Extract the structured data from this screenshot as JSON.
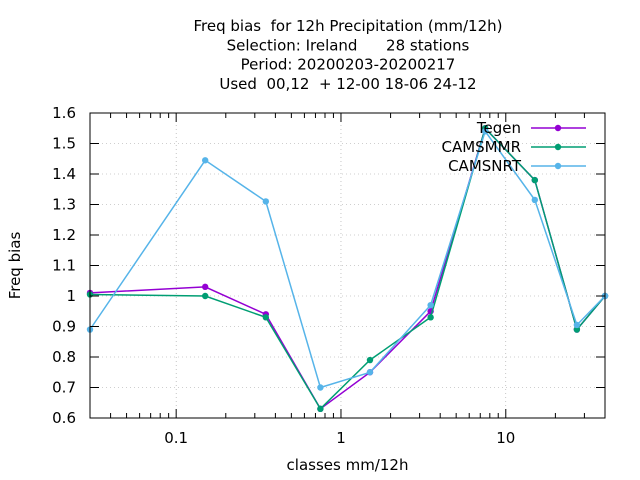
{
  "chart_data": {
    "type": "line",
    "title": [
      "Freq bias  for 12h Precipitation (mm/12h)",
      "Selection: Ireland      28 stations",
      "Period: 20200203-20200217",
      "Used  00,12  + 12-00 18-06 24-12"
    ],
    "xlabel": "classes mm/12h",
    "ylabel": "Freq bias",
    "x_scale": "log",
    "xlim": [
      0.03,
      40
    ],
    "ylim": [
      0.6,
      1.6
    ],
    "x_ticks": [
      0.1,
      1,
      10
    ],
    "x_tick_labels": [
      "0.1",
      "1",
      "10"
    ],
    "y_ticks": [
      0.6,
      0.7,
      0.8,
      0.9,
      1.0,
      1.1,
      1.2,
      1.3,
      1.4,
      1.5,
      1.6
    ],
    "y_tick_labels": [
      "0.6",
      "0.7",
      "0.8",
      "0.9",
      "1",
      "1.1",
      "1.2",
      "1.3",
      "1.4",
      "1.5",
      "1.6"
    ],
    "grid": true,
    "legend_position": "top-right",
    "x": [
      0.03,
      0.15,
      0.35,
      0.75,
      1.5,
      3.5,
      7.5,
      15,
      27,
      40
    ],
    "series": [
      {
        "name": "Tegen",
        "color": "#9400d3",
        "marker": "filled-circle",
        "values": [
          1.01,
          1.03,
          0.94,
          0.63,
          0.75,
          0.95,
          1.55,
          1.38,
          0.89,
          1.0
        ]
      },
      {
        "name": "CAMSMMR",
        "color": "#009e73",
        "marker": "filled-circle",
        "values": [
          1.005,
          1.0,
          0.93,
          0.63,
          0.79,
          0.93,
          1.55,
          1.38,
          0.89,
          1.0
        ]
      },
      {
        "name": "CAMSNRT",
        "color": "#56b4e9",
        "marker": "filled-circle",
        "values": [
          0.89,
          1.445,
          1.31,
          0.7,
          0.75,
          0.97,
          1.54,
          1.315,
          0.905,
          1.0
        ]
      }
    ]
  }
}
